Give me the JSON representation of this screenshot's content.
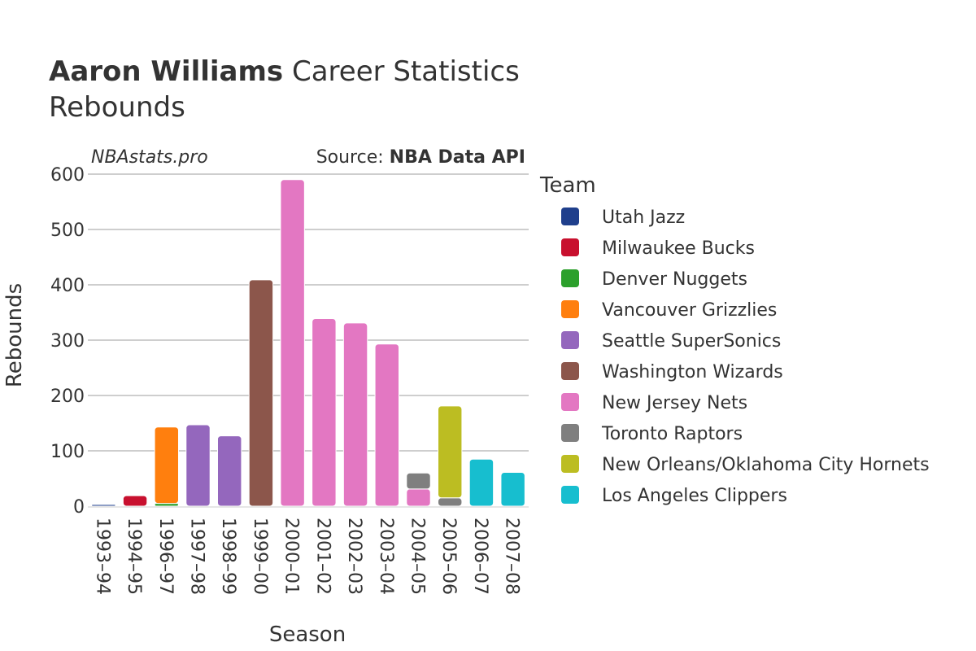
{
  "header": {
    "title_name": "Aaron Williams",
    "title_rest": " Career Statistics",
    "subtitle": "Rebounds"
  },
  "credits": {
    "site": "NBAstats.pro",
    "source_prefix": "Source: ",
    "source_name": "NBA Data API"
  },
  "chart_data": {
    "type": "bar",
    "stacked": true,
    "xlabel": "Season",
    "ylabel": "Rebounds",
    "ylim": [
      0,
      600
    ],
    "yticks": [
      0,
      100,
      200,
      300,
      400,
      500,
      600
    ],
    "grid": true,
    "legend_title": "Team",
    "legend_position": "right",
    "categories": [
      "1993–94",
      "1994–95",
      "1996–97",
      "1997–98",
      "1998–99",
      "1999–00",
      "2000–01",
      "2001–02",
      "2002–03",
      "2003–04",
      "2004–05",
      "2005–06",
      "2006–07",
      "2007–08"
    ],
    "series": [
      {
        "name": "Utah Jazz",
        "color": "#1f3f8c",
        "values": [
          3,
          0,
          0,
          0,
          0,
          0,
          0,
          0,
          0,
          0,
          0,
          0,
          0,
          0
        ]
      },
      {
        "name": "Milwaukee Bucks",
        "color": "#c8102e",
        "values": [
          0,
          19,
          0,
          0,
          0,
          0,
          0,
          0,
          0,
          0,
          0,
          0,
          0,
          0
        ]
      },
      {
        "name": "Denver Nuggets",
        "color": "#2ca02c",
        "values": [
          0,
          0,
          5,
          0,
          0,
          0,
          0,
          0,
          0,
          0,
          0,
          0,
          0,
          0
        ]
      },
      {
        "name": "Vancouver Grizzlies",
        "color": "#ff7f0e",
        "values": [
          0,
          0,
          138,
          0,
          0,
          0,
          0,
          0,
          0,
          0,
          0,
          0,
          0,
          0
        ]
      },
      {
        "name": "Seattle SuperSonics",
        "color": "#9467bd",
        "values": [
          0,
          0,
          0,
          147,
          127,
          0,
          0,
          0,
          0,
          0,
          0,
          0,
          0,
          0
        ]
      },
      {
        "name": "Washington Wizards",
        "color": "#8c564b",
        "values": [
          0,
          0,
          0,
          0,
          0,
          409,
          0,
          0,
          0,
          0,
          0,
          0,
          0,
          0
        ]
      },
      {
        "name": "New Jersey Nets",
        "color": "#e377c2",
        "values": [
          0,
          0,
          0,
          0,
          0,
          0,
          590,
          339,
          331,
          293,
          31,
          0,
          0,
          0
        ]
      },
      {
        "name": "Toronto Raptors",
        "color": "#7f7f7f",
        "values": [
          0,
          0,
          0,
          0,
          0,
          0,
          0,
          0,
          0,
          0,
          29,
          15,
          0,
          0
        ]
      },
      {
        "name": "New Orleans/Oklahoma City Hornets",
        "color": "#bcbd22",
        "values": [
          0,
          0,
          0,
          0,
          0,
          0,
          0,
          0,
          0,
          0,
          0,
          166,
          0,
          0
        ]
      },
      {
        "name": "Los Angeles Clippers",
        "color": "#17becf",
        "values": [
          0,
          0,
          0,
          0,
          0,
          0,
          0,
          0,
          0,
          0,
          0,
          0,
          85,
          61
        ]
      }
    ]
  }
}
